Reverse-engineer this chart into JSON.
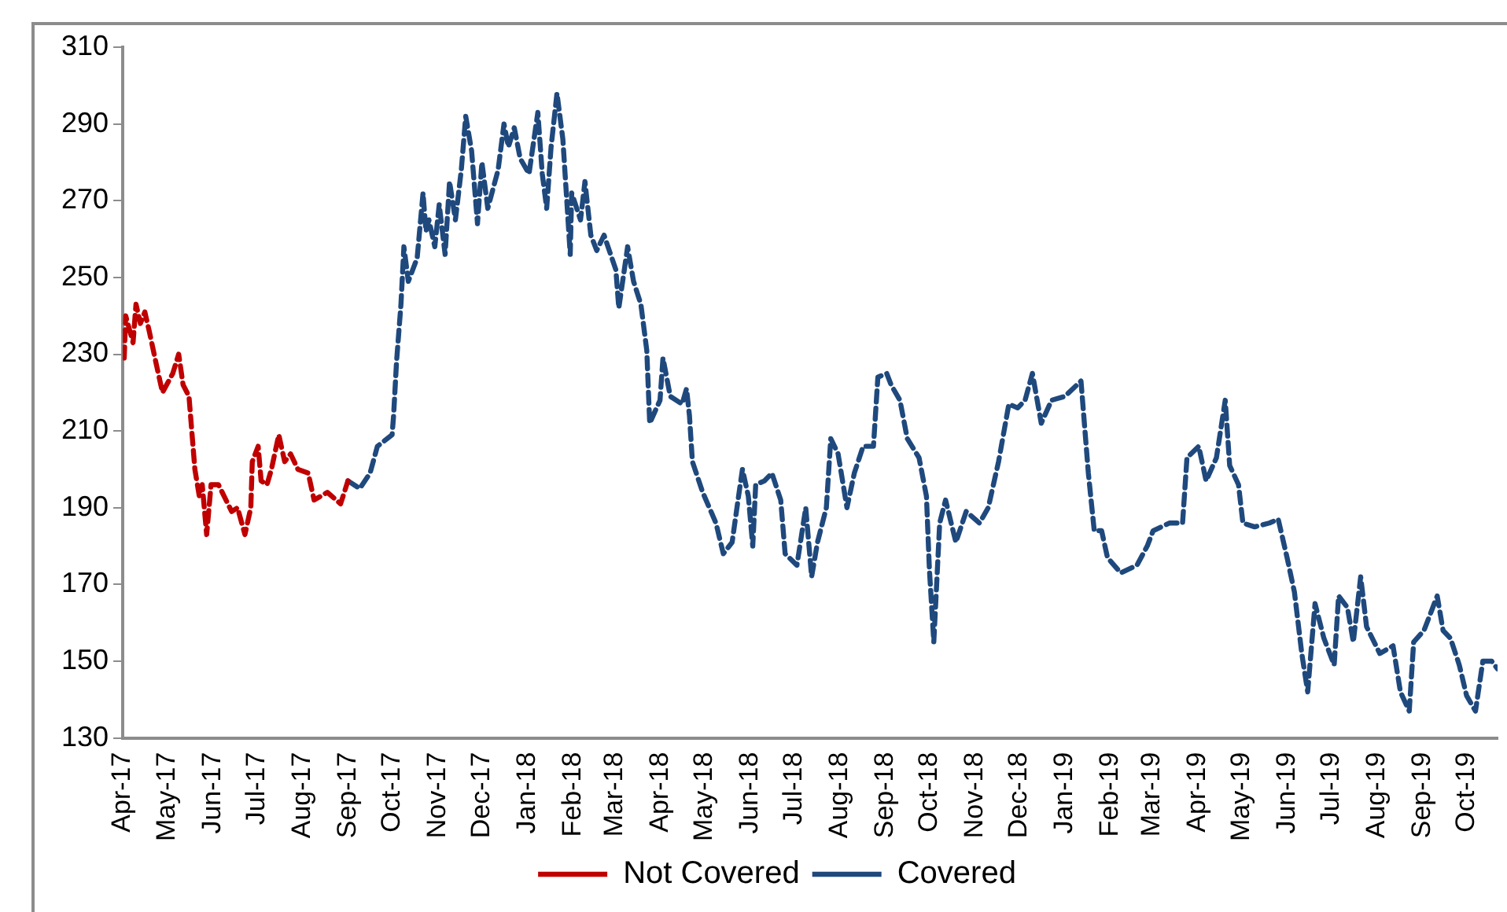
{
  "chart_data": {
    "type": "line",
    "ylim": [
      130,
      310
    ],
    "yticks": [
      130,
      150,
      170,
      190,
      210,
      230,
      250,
      270,
      290,
      310
    ],
    "xlim": [
      "2017-04-01",
      "2019-10-22"
    ],
    "xticks": [
      {
        "value": "2017-04-01",
        "label": "Apr-17"
      },
      {
        "value": "2017-05-01",
        "label": "May-17"
      },
      {
        "value": "2017-06-01",
        "label": "Jun-17"
      },
      {
        "value": "2017-07-01",
        "label": "Jul-17"
      },
      {
        "value": "2017-08-01",
        "label": "Aug-17"
      },
      {
        "value": "2017-09-01",
        "label": "Sep-17"
      },
      {
        "value": "2017-10-01",
        "label": "Oct-17"
      },
      {
        "value": "2017-11-01",
        "label": "Nov-17"
      },
      {
        "value": "2017-12-01",
        "label": "Dec-17"
      },
      {
        "value": "2018-01-01",
        "label": "Jan-18"
      },
      {
        "value": "2018-02-01",
        "label": "Feb-18"
      },
      {
        "value": "2018-03-01",
        "label": "Mar-18"
      },
      {
        "value": "2018-04-01",
        "label": "Apr-18"
      },
      {
        "value": "2018-05-01",
        "label": "May-18"
      },
      {
        "value": "2018-06-01",
        "label": "Jun-18"
      },
      {
        "value": "2018-07-01",
        "label": "Jul-18"
      },
      {
        "value": "2018-08-01",
        "label": "Aug-18"
      },
      {
        "value": "2018-09-01",
        "label": "Sep-18"
      },
      {
        "value": "2018-10-01",
        "label": "Oct-18"
      },
      {
        "value": "2018-11-01",
        "label": "Nov-18"
      },
      {
        "value": "2018-12-01",
        "label": "Dec-18"
      },
      {
        "value": "2019-01-01",
        "label": "Jan-19"
      },
      {
        "value": "2019-02-01",
        "label": "Feb-19"
      },
      {
        "value": "2019-03-01",
        "label": "Mar-19"
      },
      {
        "value": "2019-04-01",
        "label": "Apr-19"
      },
      {
        "value": "2019-05-01",
        "label": "May-19"
      },
      {
        "value": "2019-06-01",
        "label": "Jun-19"
      },
      {
        "value": "2019-07-01",
        "label": "Jul-19"
      },
      {
        "value": "2019-08-01",
        "label": "Aug-19"
      },
      {
        "value": "2019-09-01",
        "label": "Sep-19"
      },
      {
        "value": "2019-10-01",
        "label": "Oct-19"
      }
    ],
    "grid": false,
    "legend": "bottom",
    "marker": "none",
    "line_style": "dashed",
    "series": [
      {
        "name": "Not Covered",
        "color": "#c00000",
        "x": [
          "2017-04-02",
          "2017-04-03",
          "2017-04-08",
          "2017-04-10",
          "2017-04-13",
          "2017-04-16",
          "2017-04-19",
          "2017-04-24",
          "2017-04-28",
          "2017-05-05",
          "2017-05-09",
          "2017-05-12",
          "2017-05-16",
          "2017-05-20",
          "2017-05-23",
          "2017-05-25",
          "2017-05-28",
          "2017-05-31",
          "2017-06-05",
          "2017-06-14",
          "2017-06-18",
          "2017-06-23",
          "2017-06-27",
          "2017-06-28",
          "2017-07-02",
          "2017-07-04",
          "2017-07-08",
          "2017-07-11",
          "2017-07-16",
          "2017-07-20",
          "2017-07-24",
          "2017-07-29",
          "2017-08-05",
          "2017-08-09",
          "2017-08-18",
          "2017-08-27",
          "2017-09-01"
        ],
        "values": [
          229,
          240,
          233,
          243,
          238,
          241,
          236,
          227,
          220,
          225,
          230,
          222,
          219,
          200,
          193,
          196,
          183,
          196,
          196,
          189,
          190,
          183,
          190,
          202,
          206,
          197,
          196,
          200,
          209,
          202,
          204,
          200,
          199,
          192,
          194,
          191,
          197
        ]
      },
      {
        "name": "Covered",
        "color": "#1f497d",
        "x": [
          "2017-09-01",
          "2017-09-09",
          "2017-09-16",
          "2017-09-21",
          "2017-10-01",
          "2017-10-02",
          "2017-10-04",
          "2017-10-07",
          "2017-10-09",
          "2017-10-12",
          "2017-10-15",
          "2017-10-18",
          "2017-10-22",
          "2017-10-24",
          "2017-10-26",
          "2017-10-30",
          "2017-11-02",
          "2017-11-06",
          "2017-11-09",
          "2017-11-13",
          "2017-11-17",
          "2017-11-20",
          "2017-11-24",
          "2017-11-28",
          "2017-12-01",
          "2017-12-05",
          "2017-12-12",
          "2017-12-16",
          "2017-12-19",
          "2017-12-23",
          "2017-12-27",
          "2018-01-02",
          "2018-01-08",
          "2018-01-11",
          "2018-01-14",
          "2018-01-17",
          "2018-01-21",
          "2018-01-25",
          "2018-01-30",
          "2018-01-31",
          "2018-02-06",
          "2018-02-09",
          "2018-02-13",
          "2018-02-17",
          "2018-02-22",
          "2018-03-02",
          "2018-03-04",
          "2018-03-10",
          "2018-03-14",
          "2018-03-19",
          "2018-03-23",
          "2018-03-25",
          "2018-04-01",
          "2018-04-03",
          "2018-04-08",
          "2018-04-16",
          "2018-04-19",
          "2018-04-21",
          "2018-04-23",
          "2018-04-30",
          "2018-05-09",
          "2018-05-14",
          "2018-05-20",
          "2018-05-24",
          "2018-05-27",
          "2018-05-31",
          "2018-06-03",
          "2018-06-05",
          "2018-06-11",
          "2018-06-16",
          "2018-06-22",
          "2018-06-25",
          "2018-07-03",
          "2018-07-09",
          "2018-07-13",
          "2018-07-17",
          "2018-07-23",
          "2018-07-26",
          "2018-07-31",
          "2018-08-06",
          "2018-08-11",
          "2018-08-17",
          "2018-08-24",
          "2018-08-27",
          "2018-09-02",
          "2018-09-05",
          "2018-09-11",
          "2018-09-16",
          "2018-09-24",
          "2018-09-29",
          "2018-10-01",
          "2018-10-04",
          "2018-10-08",
          "2018-10-12",
          "2018-10-19",
          "2018-10-26",
          "2018-11-04",
          "2018-11-10",
          "2018-11-17",
          "2018-11-24",
          "2018-11-30",
          "2018-12-05",
          "2018-12-10",
          "2018-12-16",
          "2018-12-23",
          "2019-01-01",
          "2019-01-12",
          "2019-01-17",
          "2019-01-21",
          "2019-01-26",
          "2019-01-30",
          "2019-02-08",
          "2019-02-19",
          "2019-02-26",
          "2019-03-02",
          "2019-03-13",
          "2019-03-22",
          "2019-03-25",
          "2019-04-02",
          "2019-04-07",
          "2019-04-14",
          "2019-04-20",
          "2019-04-23",
          "2019-04-29",
          "2019-05-02",
          "2019-05-10",
          "2019-05-20",
          "2019-05-26",
          "2019-06-01",
          "2019-06-06",
          "2019-06-11",
          "2019-06-15",
          "2019-06-20",
          "2019-06-26",
          "2019-07-03",
          "2019-07-06",
          "2019-07-12",
          "2019-07-16",
          "2019-07-21",
          "2019-07-25",
          "2019-08-03",
          "2019-08-12",
          "2019-08-17",
          "2019-08-23",
          "2019-08-26",
          "2019-09-02",
          "2019-09-11",
          "2019-09-15",
          "2019-09-20",
          "2019-09-26",
          "2019-10-01",
          "2019-10-07",
          "2019-10-12",
          "2019-10-18",
          "2019-10-22"
        ],
        "values": [
          197,
          195,
          199,
          206,
          209,
          214,
          228,
          243,
          258,
          249,
          252,
          255,
          272,
          262,
          265,
          258,
          269,
          256,
          275,
          265,
          278,
          292,
          283,
          264,
          280,
          268,
          278,
          290,
          284,
          289,
          281,
          277,
          293,
          277,
          268,
          284,
          298,
          286,
          256,
          272,
          265,
          275,
          261,
          257,
          261,
          252,
          242,
          258,
          249,
          243,
          231,
          212,
          218,
          229,
          219,
          217,
          221,
          214,
          202,
          194,
          186,
          178,
          181,
          192,
          200,
          193,
          180,
          196,
          197,
          199,
          192,
          178,
          175,
          190,
          172,
          181,
          190,
          208,
          204,
          190,
          199,
          206,
          206,
          224,
          225,
          222,
          218,
          208,
          203,
          193,
          174,
          155,
          186,
          192,
          181,
          189,
          186,
          190,
          202,
          217,
          216,
          218,
          225,
          212,
          218,
          219,
          223,
          199,
          184,
          184,
          177,
          173,
          175,
          180,
          184,
          186,
          186,
          203,
          206,
          197,
          203,
          218,
          201,
          196,
          186,
          185,
          186,
          187,
          177,
          168,
          152,
          142,
          165,
          156,
          149,
          167,
          164,
          155,
          172,
          159,
          152,
          154,
          142,
          137,
          155,
          158,
          167,
          158,
          156,
          149,
          141,
          137,
          150,
          150,
          148
        ]
      }
    ]
  }
}
